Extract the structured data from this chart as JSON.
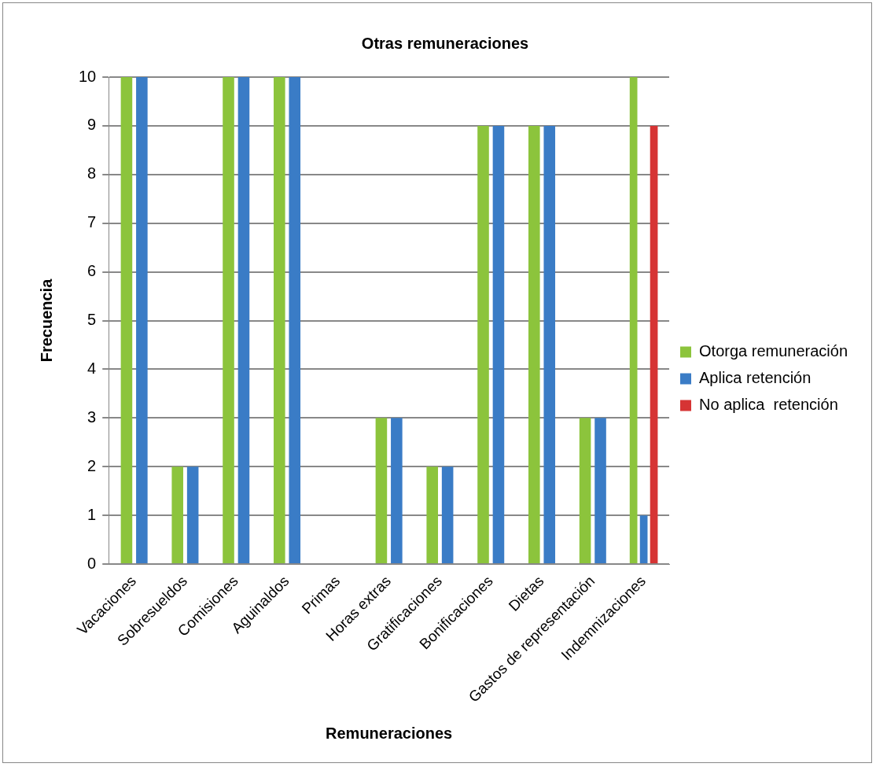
{
  "chart_data": {
    "type": "bar",
    "title": "Otras remuneraciones",
    "xlabel": "Remuneraciones",
    "ylabel": "Frecuencia",
    "categories": [
      "Vacaciones",
      "Sobresueldos",
      "Comisiones",
      "Aguinaldos",
      "Primas",
      "Horas extras",
      "Gratificaciones",
      "Bonificaciones",
      "Dietas",
      "Gastos de representación",
      "Indemnizaciones"
    ],
    "series": [
      {
        "name": "Otorga remuneración",
        "color": "#8cc43c",
        "values": [
          10,
          2,
          10,
          10,
          0,
          3,
          2,
          9,
          9,
          3,
          10
        ]
      },
      {
        "name": "Aplica retención",
        "color": "#3a7cc6",
        "values": [
          10,
          2,
          10,
          10,
          0,
          3,
          2,
          9,
          9,
          3,
          1
        ]
      },
      {
        "name": "No aplica  retención",
        "color": "#d63434",
        "values": [
          null,
          null,
          null,
          null,
          null,
          null,
          null,
          null,
          null,
          null,
          9
        ]
      }
    ],
    "ylim": [
      0,
      10
    ],
    "yticks": [
      0,
      1,
      2,
      3,
      4,
      5,
      6,
      7,
      8,
      9,
      10
    ],
    "grid": "y",
    "legend": "right"
  }
}
